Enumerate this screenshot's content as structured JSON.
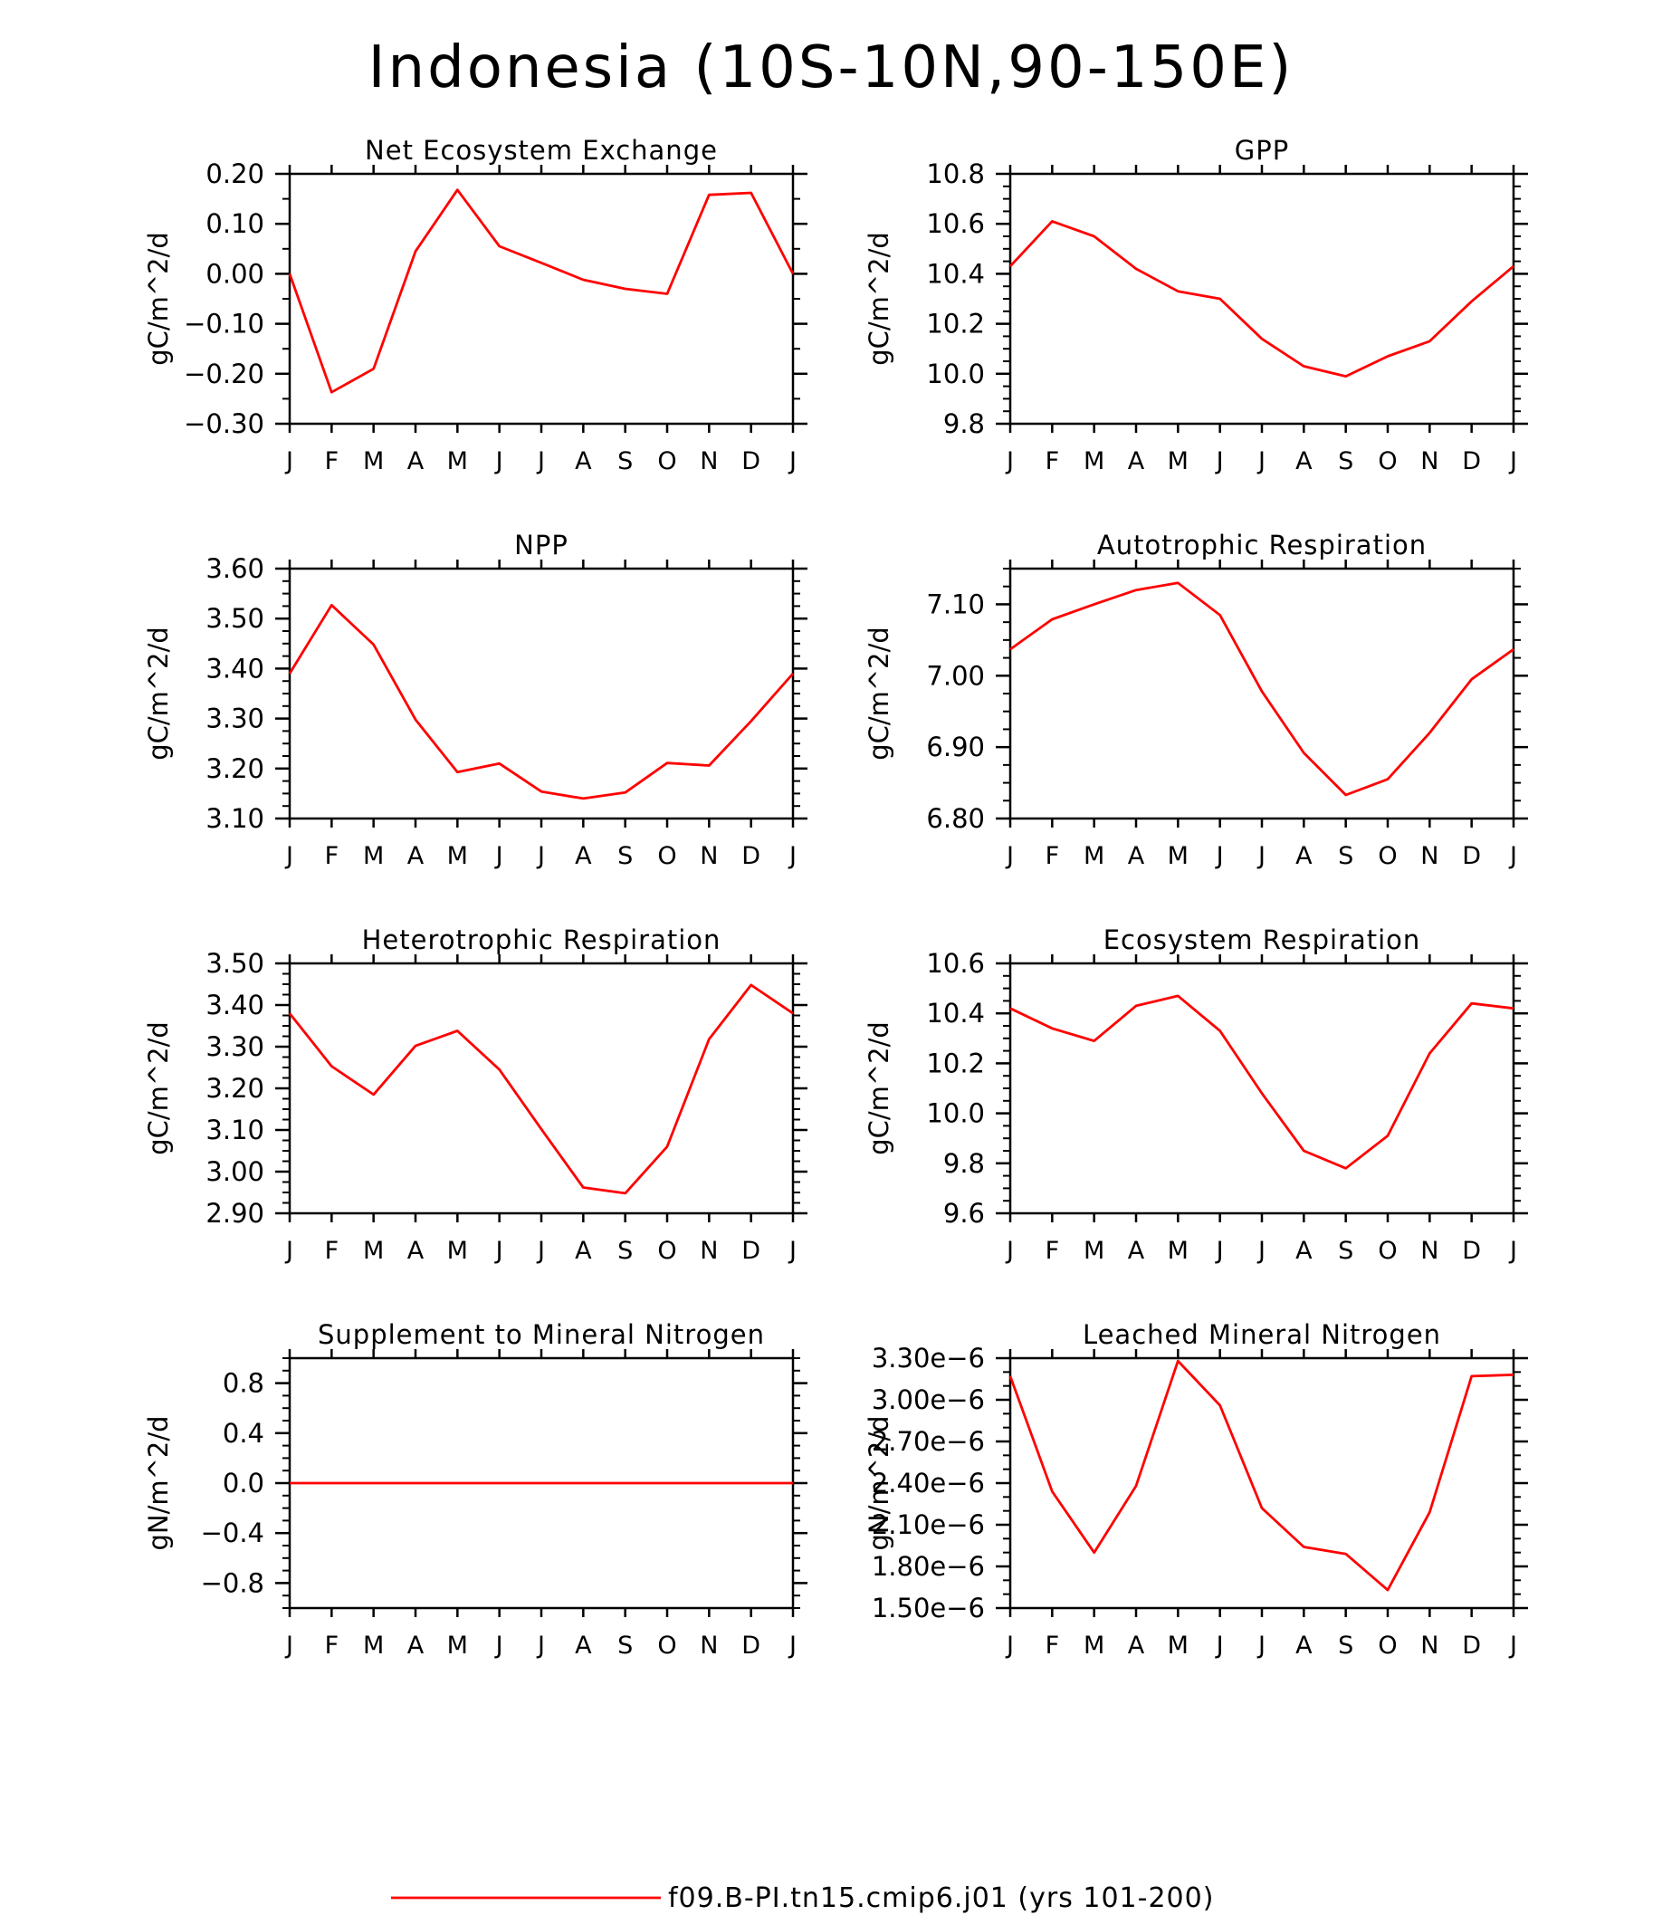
{
  "figure": {
    "title": "Indonesia (10S-10N,90-150E)",
    "legend": {
      "label": "f09.B-PI.tn15.cmip6.j01 (yrs 101-200)",
      "color": "#ff0000",
      "placement": "bottom-center"
    }
  },
  "months": [
    "J",
    "F",
    "M",
    "A",
    "M",
    "J",
    "J",
    "A",
    "S",
    "O",
    "N",
    "D",
    "J"
  ],
  "chart_data": [
    {
      "type": "line",
      "title": "Net Ecosystem Exchange",
      "ylabel": "gC/m^2/d",
      "categories": [
        "J",
        "F",
        "M",
        "A",
        "M",
        "J",
        "J",
        "A",
        "S",
        "O",
        "N",
        "D",
        "J"
      ],
      "ylim": [
        -0.3,
        0.2
      ],
      "yticks": [
        -0.3,
        -0.2,
        -0.1,
        0.0,
        0.1,
        0.2
      ],
      "ytick_labels": [
        "−0.30",
        "−0.20",
        "−0.10",
        "0.00",
        "0.10",
        "0.20"
      ],
      "minor": 0.05,
      "series": [
        {
          "values": [
            0.0,
            -0.237,
            -0.19,
            0.045,
            0.168,
            0.055,
            0.022,
            -0.012,
            -0.03,
            -0.04,
            0.158,
            0.162,
            0.0
          ],
          "color": "#ff0000"
        }
      ]
    },
    {
      "type": "line",
      "title": "GPP",
      "ylabel": "gC/m^2/d",
      "categories": [
        "J",
        "F",
        "M",
        "A",
        "M",
        "J",
        "J",
        "A",
        "S",
        "O",
        "N",
        "D",
        "J"
      ],
      "ylim": [
        9.8,
        10.8
      ],
      "yticks": [
        9.8,
        10.0,
        10.2,
        10.4,
        10.6,
        10.8
      ],
      "ytick_labels": [
        "9.8",
        "10.0",
        "10.2",
        "10.4",
        "10.6",
        "10.8"
      ],
      "minor": 0.05,
      "series": [
        {
          "values": [
            10.43,
            10.61,
            10.55,
            10.42,
            10.33,
            10.3,
            10.14,
            10.03,
            9.99,
            10.07,
            10.13,
            10.29,
            10.43
          ],
          "color": "#ff0000"
        }
      ]
    },
    {
      "type": "line",
      "title": "NPP",
      "ylabel": "gC/m^2/d",
      "categories": [
        "J",
        "F",
        "M",
        "A",
        "M",
        "J",
        "J",
        "A",
        "S",
        "O",
        "N",
        "D",
        "J"
      ],
      "ylim": [
        3.1,
        3.6
      ],
      "yticks": [
        3.1,
        3.2,
        3.3,
        3.4,
        3.5,
        3.6
      ],
      "ytick_labels": [
        "3.10",
        "3.20",
        "3.30",
        "3.40",
        "3.50",
        "3.60"
      ],
      "minor": 0.025,
      "series": [
        {
          "values": [
            3.39,
            3.527,
            3.448,
            3.298,
            3.193,
            3.21,
            3.154,
            3.14,
            3.152,
            3.211,
            3.206,
            3.295,
            3.39
          ],
          "color": "#ff0000"
        }
      ]
    },
    {
      "type": "line",
      "title": "Autotrophic Respiration",
      "ylabel": "gC/m^2/d",
      "categories": [
        "J",
        "F",
        "M",
        "A",
        "M",
        "J",
        "J",
        "A",
        "S",
        "O",
        "N",
        "D",
        "J"
      ],
      "ylim": [
        6.8,
        7.15
      ],
      "yticks": [
        6.8,
        6.9,
        7.0,
        7.1
      ],
      "ytick_labels": [
        "6.80",
        "6.90",
        "7.00",
        "7.10"
      ],
      "minor": 0.025,
      "series": [
        {
          "values": [
            7.037,
            7.079,
            7.1,
            7.12,
            7.13,
            7.085,
            6.978,
            6.892,
            6.833,
            6.855,
            6.92,
            6.995,
            7.037
          ],
          "color": "#ff0000"
        }
      ]
    },
    {
      "type": "line",
      "title": "Heterotrophic Respiration",
      "ylabel": "gC/m^2/d",
      "categories": [
        "J",
        "F",
        "M",
        "A",
        "M",
        "J",
        "J",
        "A",
        "S",
        "O",
        "N",
        "D",
        "J"
      ],
      "ylim": [
        2.9,
        3.5
      ],
      "yticks": [
        2.9,
        3.0,
        3.1,
        3.2,
        3.3,
        3.4,
        3.5
      ],
      "ytick_labels": [
        "2.90",
        "3.00",
        "3.10",
        "3.20",
        "3.30",
        "3.40",
        "3.50"
      ],
      "minor": 0.025,
      "series": [
        {
          "values": [
            3.38,
            3.253,
            3.185,
            3.302,
            3.338,
            3.245,
            3.102,
            2.962,
            2.948,
            3.06,
            3.318,
            3.448,
            3.38
          ],
          "color": "#ff0000"
        }
      ]
    },
    {
      "type": "line",
      "title": "Ecosystem Respiration",
      "ylabel": "gC/m^2/d",
      "categories": [
        "J",
        "F",
        "M",
        "A",
        "M",
        "J",
        "J",
        "A",
        "S",
        "O",
        "N",
        "D",
        "J"
      ],
      "ylim": [
        9.6,
        10.6
      ],
      "yticks": [
        9.6,
        9.8,
        10.0,
        10.2,
        10.4,
        10.6
      ],
      "ytick_labels": [
        "9.6",
        "9.8",
        "10.0",
        "10.2",
        "10.4",
        "10.6"
      ],
      "minor": 0.05,
      "series": [
        {
          "values": [
            10.42,
            10.34,
            10.29,
            10.43,
            10.47,
            10.33,
            10.08,
            9.85,
            9.78,
            9.91,
            10.24,
            10.44,
            10.42
          ],
          "color": "#ff0000"
        }
      ]
    },
    {
      "type": "line",
      "title": "Supplement to Mineral Nitrogen",
      "ylabel": "gN/m^2/d",
      "categories": [
        "J",
        "F",
        "M",
        "A",
        "M",
        "J",
        "J",
        "A",
        "S",
        "O",
        "N",
        "D",
        "J"
      ],
      "ylim": [
        -1.0,
        1.0
      ],
      "yticks": [
        -0.8,
        -0.4,
        0.0,
        0.4,
        0.8
      ],
      "ytick_labels": [
        "−0.8",
        "−0.4",
        "0.0",
        "0.4",
        "0.8"
      ],
      "minor": 0.1,
      "series": [
        {
          "values": [
            0,
            0,
            0,
            0,
            0,
            0,
            0,
            0,
            0,
            0,
            0,
            0,
            0
          ],
          "color": "#ff0000"
        }
      ]
    },
    {
      "type": "line",
      "title": "Leached Mineral Nitrogen",
      "ylabel": "gN/m^2/d",
      "categories": [
        "J",
        "F",
        "M",
        "A",
        "M",
        "J",
        "J",
        "A",
        "S",
        "O",
        "N",
        "D",
        "J"
      ],
      "ylim": [
        1.5e-06,
        3.3e-06
      ],
      "yticks": [
        1.5e-06,
        1.8e-06,
        2.1e-06,
        2.4e-06,
        2.7e-06,
        3e-06,
        3.3e-06
      ],
      "ytick_labels": [
        "1.50e−6",
        "1.80e−6",
        "2.10e−6",
        "2.40e−6",
        "2.70e−6",
        "3.00e−6",
        "3.30e−6"
      ],
      "minor": 1e-07,
      "series": [
        {
          "values": [
            3.17e-06,
            2.34e-06,
            1.9e-06,
            2.38e-06,
            3.28e-06,
            2.96e-06,
            2.22e-06,
            1.94e-06,
            1.89e-06,
            1.63e-06,
            2.19e-06,
            3.17e-06,
            3.18e-06
          ],
          "color": "#ff0000"
        }
      ]
    }
  ]
}
